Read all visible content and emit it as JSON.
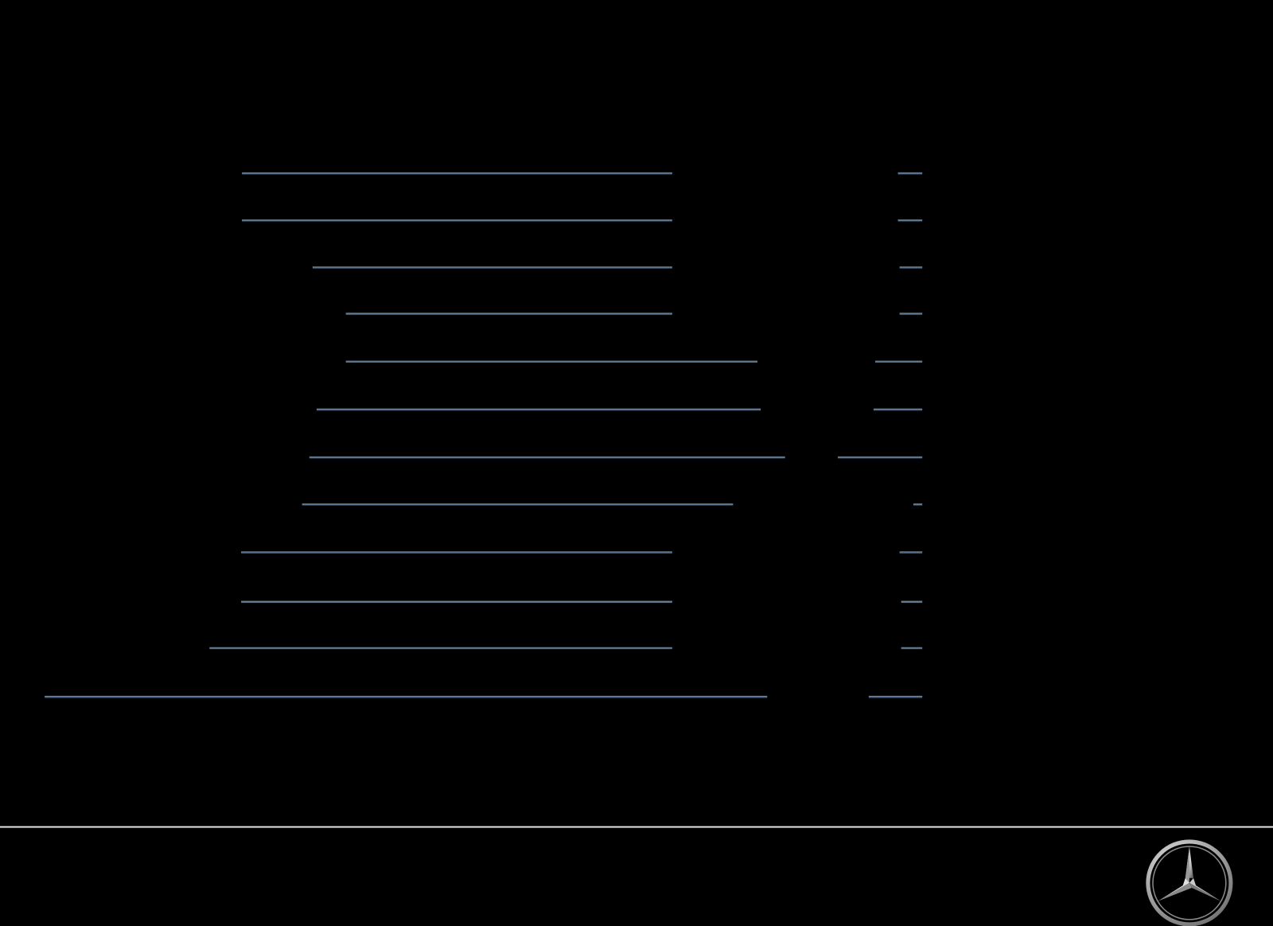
{
  "artwork": {
    "description_icon": "striped-lines-hidden-star",
    "colors": {
      "background": "#000000",
      "gray_line": "#5f6a6c",
      "blue_line": "#3d5a78",
      "blue_highlight": "#9fb3c8",
      "divider": "#e6e6e6"
    }
  },
  "footer": {
    "logo_icon": "mercedes-benz-star-logo"
  }
}
